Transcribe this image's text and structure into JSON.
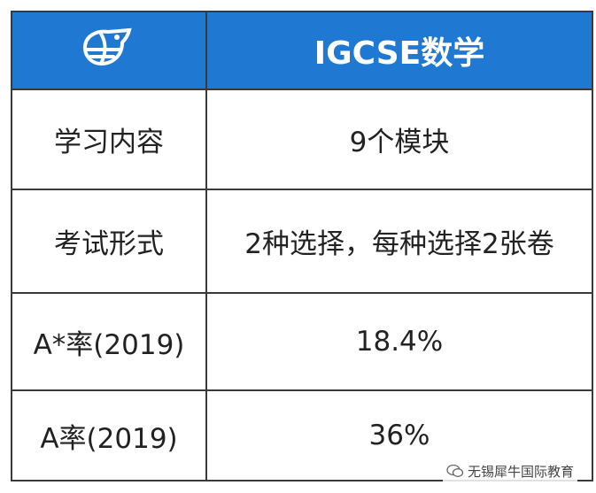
{
  "header": {
    "title": "IGCSE数学"
  },
  "table": {
    "rows": [
      [
        "学习内容",
        "9个模块"
      ],
      [
        "考试形式",
        "2种选择，每种选择2张卷"
      ],
      [
        "A*率(2019)",
        "18.4%"
      ],
      [
        "A率(2019)",
        "36%"
      ]
    ]
  },
  "watermark": "无锡犀牛国际教育"
}
